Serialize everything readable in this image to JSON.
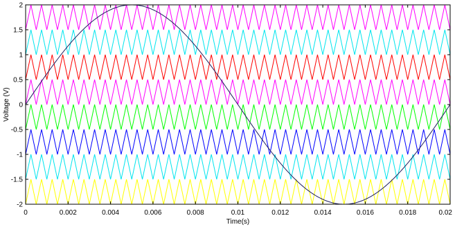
{
  "chart_data": {
    "type": "line",
    "xlabel": "Time(s)",
    "ylabel": "Voltage (V)",
    "xlim": [
      0,
      0.02
    ],
    "ylim": [
      -2,
      2
    ],
    "x_ticks": [
      "0",
      "0.002",
      "0.004",
      "0.006",
      "0.008",
      "0.01",
      "0.012",
      "0.014",
      "0.016",
      "0.018",
      "0.02"
    ],
    "y_ticks": [
      "2",
      "1.5",
      "1",
      "0.5",
      "0",
      "-0.5",
      "-1",
      "-1.5",
      "-2"
    ],
    "grid": false,
    "reference_wave": {
      "shape": "sine",
      "amplitude": 2,
      "frequency_hz": 50,
      "color": "#1f1f5f"
    },
    "carrier_waves": {
      "shape": "triangle",
      "cycles_per_window": 40,
      "bands": [
        {
          "ymin": 1.5,
          "ymax": 2,
          "color": "#ff00ff"
        },
        {
          "ymin": 1,
          "ymax": 1.5,
          "color": "#00e5ee"
        },
        {
          "ymin": 0.5,
          "ymax": 1,
          "color": "#ff0000"
        },
        {
          "ymin": 0,
          "ymax": 0.5,
          "color": "#ff00ff"
        },
        {
          "ymin": -0.5,
          "ymax": 0,
          "color": "#00ff00"
        },
        {
          "ymin": -1,
          "ymax": -0.5,
          "color": "#0000ff"
        },
        {
          "ymin": -1.5,
          "ymax": -1,
          "color": "#00e5ee"
        },
        {
          "ymin": -2,
          "ymax": -1.5,
          "color": "#ffff00"
        }
      ]
    }
  }
}
